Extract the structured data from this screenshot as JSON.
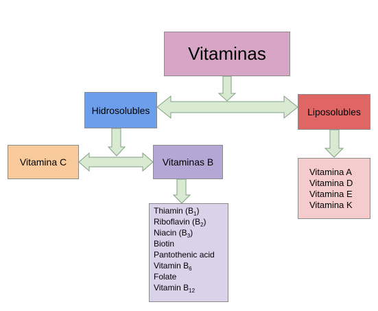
{
  "diagram": {
    "root": "Vitaminas",
    "water_soluble": "Hidrosolubles",
    "fat_soluble": "Liposolubles",
    "vitamin_c": "Vitamina C",
    "vitamins_b": "Vitaminas B",
    "fat_soluble_items": [
      "Vitamina A",
      "Vitamina D",
      "Vitamina E",
      "Vitamina K"
    ],
    "b_vitamins": [
      {
        "name": "Thiamin (B",
        "sub": "1",
        "after": ")"
      },
      {
        "name": "Riboflavin (B",
        "sub": "2",
        "after": ")"
      },
      {
        "name": "Niacin (B",
        "sub": "3",
        "after": ")"
      },
      {
        "name": "Biotin",
        "sub": "",
        "after": ""
      },
      {
        "name": "Pantothenic acid",
        "sub": "",
        "after": ""
      },
      {
        "name": "Vitamin B",
        "sub": "6",
        "after": ""
      },
      {
        "name": "Folate",
        "sub": "",
        "after": ""
      },
      {
        "name": "Vitamin B",
        "sub": "12",
        "after": ""
      }
    ]
  },
  "colors": {
    "root": "#d7a6c6",
    "water_soluble": "#6d9eeb",
    "fat_soluble": "#e06666",
    "vitamin_c": "#f9cb9c",
    "vitamins_b": "#b4a7d6",
    "fat_soluble_list": "#f4cccc",
    "b_list": "#d9d2e9",
    "arrow_fill": "#d9ead3",
    "arrow_stroke": "#7f9f7f"
  }
}
